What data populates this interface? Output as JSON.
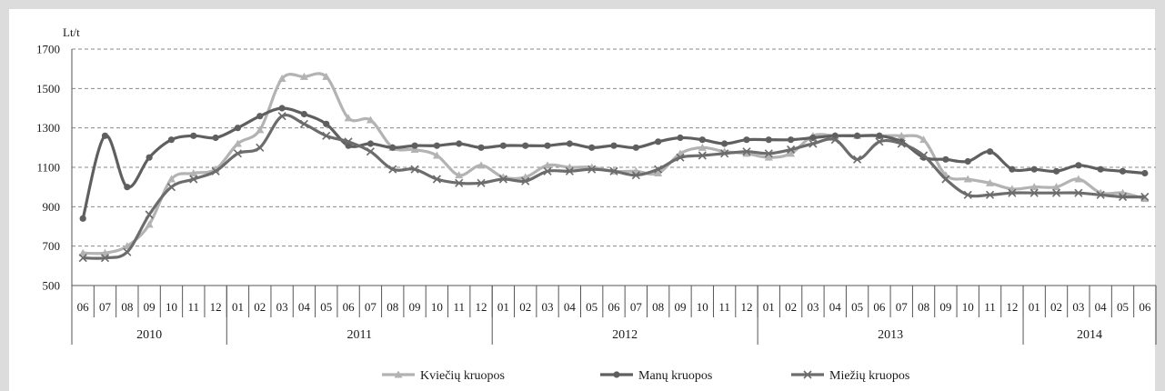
{
  "chart_data": {
    "type": "line",
    "ylabel": "Lt/t",
    "ylim": [
      500,
      1700
    ],
    "yticks": [
      500,
      700,
      900,
      1100,
      1300,
      1500,
      1700
    ],
    "grid": "horizontal-dashed",
    "legend_position": "bottom",
    "months": [
      "06",
      "07",
      "08",
      "09",
      "10",
      "11",
      "12",
      "01",
      "02",
      "03",
      "04",
      "05",
      "06",
      "07",
      "08",
      "09",
      "10",
      "11",
      "12",
      "01",
      "02",
      "03",
      "04",
      "05",
      "06",
      "07",
      "08",
      "09",
      "10",
      "11",
      "12",
      "01",
      "02",
      "03",
      "04",
      "05",
      "06",
      "07",
      "08",
      "09",
      "10",
      "11",
      "12",
      "01",
      "02",
      "03",
      "04",
      "05",
      "06"
    ],
    "years": [
      {
        "label": "2010",
        "months": 7
      },
      {
        "label": "2011",
        "months": 12
      },
      {
        "label": "2012",
        "months": 12
      },
      {
        "label": "2013",
        "months": 12
      },
      {
        "label": "2014",
        "months": 6
      }
    ],
    "series": [
      {
        "name": "Kviečių kruopos",
        "color": "#b3b3b3",
        "marker": "triangle",
        "values": [
          665,
          665,
          700,
          810,
          1040,
          1070,
          1090,
          1220,
          1290,
          1550,
          1560,
          1560,
          1350,
          1340,
          1200,
          1190,
          1160,
          1060,
          1110,
          1050,
          1050,
          1110,
          1100,
          1100,
          1080,
          1080,
          1070,
          1170,
          1200,
          1180,
          1170,
          1150,
          1170,
          1260,
          1260,
          1260,
          1260,
          1260,
          1240,
          1060,
          1040,
          1020,
          990,
          1000,
          1000,
          1040,
          970,
          970,
          940
        ]
      },
      {
        "name": "Manų kruopos",
        "color": "#5f5f5f",
        "marker": "circle",
        "values": [
          840,
          1260,
          1000,
          1150,
          1240,
          1260,
          1250,
          1300,
          1360,
          1400,
          1370,
          1320,
          1210,
          1220,
          1200,
          1210,
          1210,
          1220,
          1200,
          1210,
          1210,
          1210,
          1220,
          1200,
          1210,
          1200,
          1230,
          1250,
          1240,
          1220,
          1240,
          1240,
          1240,
          1250,
          1260,
          1260,
          1260,
          1230,
          1150,
          1140,
          1130,
          1180,
          1090,
          1090,
          1080,
          1110,
          1090,
          1080,
          1070
        ]
      },
      {
        "name": "Miežių kruopos",
        "color": "#6c6c6c",
        "marker": "x",
        "values": [
          640,
          640,
          670,
          860,
          1000,
          1040,
          1080,
          1170,
          1200,
          1360,
          1320,
          1260,
          1230,
          1180,
          1090,
          1090,
          1040,
          1020,
          1020,
          1040,
          1030,
          1080,
          1080,
          1090,
          1080,
          1060,
          1090,
          1150,
          1160,
          1170,
          1180,
          1170,
          1190,
          1220,
          1240,
          1140,
          1230,
          1220,
          1160,
          1040,
          960,
          960,
          970,
          970,
          970,
          970,
          960,
          950,
          950
        ]
      }
    ]
  }
}
